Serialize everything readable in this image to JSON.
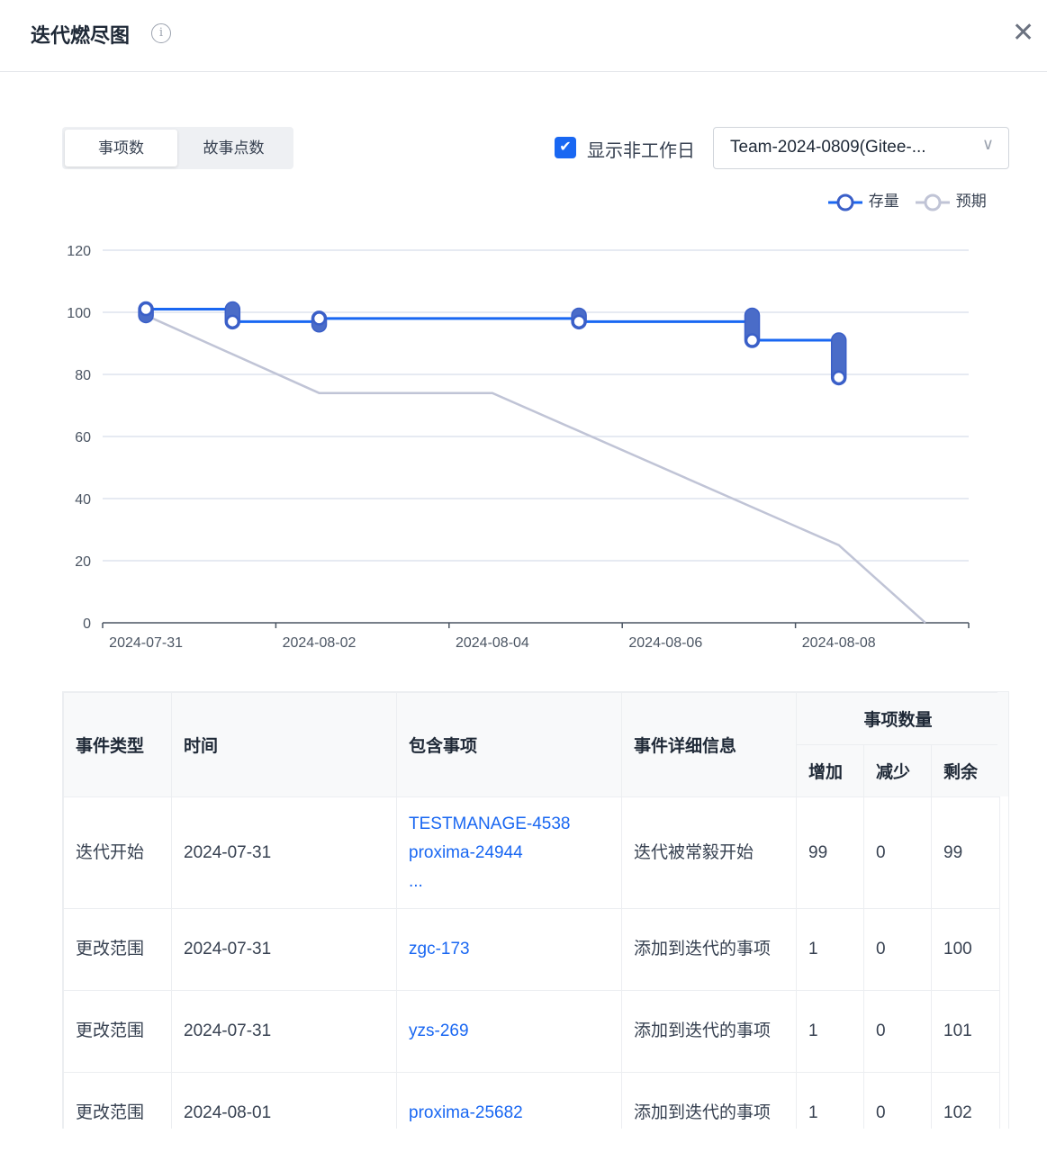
{
  "header": {
    "title": "迭代燃尽图",
    "info_icon": "info-icon",
    "close_icon": "close-icon"
  },
  "toolbar": {
    "tabs": [
      {
        "label": "事项数",
        "active": true
      },
      {
        "label": "故事点数",
        "active": false
      }
    ],
    "show_nonworking_label": "显示非工作日",
    "show_nonworking_checked": true,
    "sprint_select": "Team-2024-0809(Gitee-..."
  },
  "colors": {
    "accent": "#1967f2",
    "actual": "#1967f2",
    "marker": "#4a6cc8",
    "ideal": "#c0c4d6"
  },
  "chart_data": {
    "type": "line",
    "y_ticks": [
      "0",
      "20",
      "40",
      "60",
      "80",
      "100",
      "120"
    ],
    "ylim": [
      0,
      120
    ],
    "x_ticks": [
      "2024-07-31",
      "2024-08-02",
      "2024-08-04",
      "2024-08-06",
      "2024-08-08"
    ],
    "grid": true,
    "legend_position": "top-right",
    "series": [
      {
        "name": "存量",
        "step": true,
        "points": [
          {
            "x": "2024-07-31",
            "from": 99,
            "y": 101
          },
          {
            "x": "2024-08-01",
            "from": 101,
            "y": 97
          },
          {
            "x": "2024-08-02",
            "from": 96,
            "y": 98
          },
          {
            "x": "2024-08-05",
            "from": 99,
            "y": 97
          },
          {
            "x": "2024-08-07",
            "from": 99,
            "y": 91
          },
          {
            "x": "2024-08-08",
            "from": 91,
            "y": 79
          }
        ]
      },
      {
        "name": "预期",
        "points": [
          {
            "x": "2024-07-31",
            "y": 99
          },
          {
            "x": "2024-08-02",
            "y": 74
          },
          {
            "x": "2024-08-04",
            "y": 74
          },
          {
            "x": "2024-08-08",
            "y": 25
          },
          {
            "x": "2024-08-09",
            "y": 0
          }
        ]
      }
    ]
  },
  "table": {
    "headers": {
      "type": "事件类型",
      "time": "时间",
      "items": "包含事项",
      "detail": "事件详细信息",
      "count": "事项数量",
      "add": "增加",
      "remove": "减少",
      "remain": "剩余"
    },
    "rows": [
      {
        "type": "迭代开始",
        "time": "2024-07-31",
        "items": [
          "TESTMANAGE-4538",
          "proxima-24944",
          "..."
        ],
        "detail": "迭代被常毅开始",
        "add": "99",
        "remove": "0",
        "remain": "99"
      },
      {
        "type": "更改范围",
        "time": "2024-07-31",
        "items": [
          "zgc-173"
        ],
        "detail": "添加到迭代的事项",
        "add": "1",
        "remove": "0",
        "remain": "100"
      },
      {
        "type": "更改范围",
        "time": "2024-07-31",
        "items": [
          "yzs-269"
        ],
        "detail": "添加到迭代的事项",
        "add": "1",
        "remove": "0",
        "remain": "101"
      },
      {
        "type": "更改范围",
        "time": "2024-08-01",
        "items": [
          "proxima-25682"
        ],
        "detail": "添加到迭代的事项",
        "add": "1",
        "remove": "0",
        "remain": "102"
      }
    ]
  }
}
